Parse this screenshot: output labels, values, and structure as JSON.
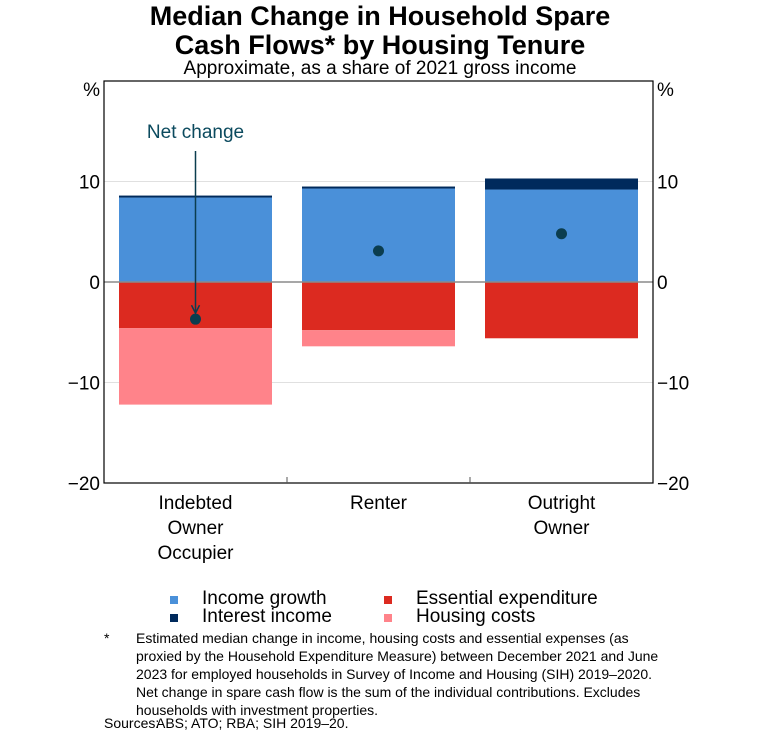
{
  "header": {
    "title_line1": "Median Change in Household Spare",
    "title_line2": "Cash Flows* by Housing Tenure",
    "subtitle": "Approximate, as a share of 2021 gross income"
  },
  "colors": {
    "income_growth": "#4a90d9",
    "interest_income": "#002a5c",
    "essential_expenditure": "#dc2a20",
    "housing_costs": "#ff838a",
    "net_change": "#0b3d4f",
    "annotation": "#0b4a5e"
  },
  "chart_data": {
    "type": "bar",
    "stacked": true,
    "title": "Median Change in Household Spare Cash Flows* by Housing Tenure",
    "subtitle": "Approximate, as a share of 2021 gross income",
    "xlabel": "",
    "ylabel_left": "%",
    "ylabel_right": "%",
    "ylim": [
      -20,
      20
    ],
    "yticks": [
      10,
      0,
      -10,
      -20
    ],
    "ytick_labels": [
      "10",
      "0",
      "−10",
      "−20"
    ],
    "grid": true,
    "categories": [
      "Indebted Owner Occupier",
      "Renter",
      "Outright Owner"
    ],
    "category_label_lines": [
      [
        "Indebted",
        "Owner",
        "Occupier"
      ],
      [
        "Renter"
      ],
      [
        "Outright",
        "Owner"
      ]
    ],
    "series": [
      {
        "name": "Income growth",
        "key": "income_growth",
        "values": [
          8.4,
          9.3,
          9.2
        ]
      },
      {
        "name": "Interest income",
        "key": "interest_income",
        "values": [
          0.2,
          0.2,
          1.1
        ]
      },
      {
        "name": "Essential expenditure",
        "key": "essential_expenditure",
        "values": [
          -4.6,
          -4.8,
          -5.6
        ]
      },
      {
        "name": "Housing costs",
        "key": "housing_costs",
        "values": [
          -7.6,
          -1.6,
          0
        ]
      }
    ],
    "net_change": {
      "name": "Net change",
      "values": [
        -3.7,
        3.1,
        4.8
      ]
    },
    "annotation": {
      "text": "Net change",
      "target_category": 0
    },
    "legend_placement": "bottom"
  },
  "legend": {
    "items": [
      {
        "label": "Income growth",
        "key": "income_growth"
      },
      {
        "label": "Interest income",
        "key": "interest_income"
      },
      {
        "label": "Essential expenditure",
        "key": "essential_expenditure"
      },
      {
        "label": "Housing costs",
        "key": "housing_costs"
      }
    ]
  },
  "footnotes": {
    "mark": "*",
    "text": "Estimated median change in income, housing costs and essential expenses (as proxied by the Household Expenditure Measure) between December 2021 and June 2023 for employed households in Survey of Income and Housing (SIH) 2019–2020. Net change in spare cash flow is the sum of the individual contributions. Excludes households with investment properties.",
    "sources_label": "Sources:",
    "sources_text": "ABS; ATO; RBA; SIH 2019–20."
  }
}
